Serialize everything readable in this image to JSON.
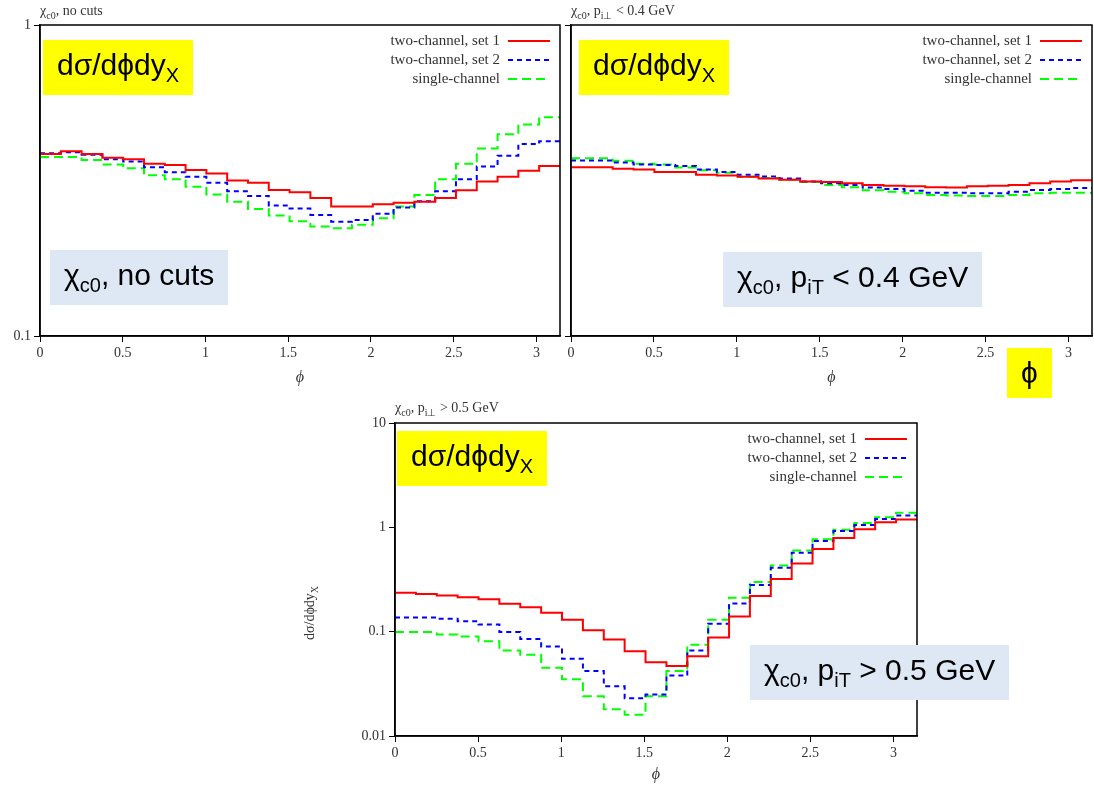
{
  "chart_data": [
    {
      "type": "histogram",
      "title": "χ$_{c0}$, no cuts",
      "xlabel": "ϕ",
      "log": true,
      "grid": false,
      "legend": "top right",
      "bins": [
        0,
        0.126,
        0.251,
        0.377,
        0.503,
        0.628,
        0.754,
        0.88,
        1.005,
        1.131,
        1.257,
        1.382,
        1.508,
        1.634,
        1.759,
        1.885,
        2.011,
        2.136,
        2.262,
        2.388,
        2.513,
        2.639,
        2.765,
        2.89,
        3.016,
        3.142
      ],
      "series": [
        {
          "name": "two-channel, set 1",
          "color": "#ff0000",
          "line_style": "solid",
          "values": [
            0.385,
            0.393,
            0.385,
            0.374,
            0.37,
            0.358,
            0.355,
            0.342,
            0.333,
            0.316,
            0.311,
            0.295,
            0.29,
            0.278,
            0.261,
            0.261,
            0.265,
            0.268,
            0.27,
            0.278,
            0.294,
            0.314,
            0.325,
            0.34,
            0.352
          ]
        },
        {
          "name": "two-channel, set 2",
          "color": "#0000ff",
          "line_style": "dotted",
          "values": [
            0.387,
            0.39,
            0.383,
            0.37,
            0.364,
            0.349,
            0.336,
            0.325,
            0.311,
            0.292,
            0.282,
            0.263,
            0.257,
            0.245,
            0.233,
            0.236,
            0.247,
            0.259,
            0.271,
            0.292,
            0.319,
            0.351,
            0.38,
            0.414,
            0.423
          ]
        },
        {
          "name": "single-channel",
          "color": "#00ff00",
          "line_style": "dashed",
          "values": [
            0.376,
            0.376,
            0.368,
            0.356,
            0.346,
            0.329,
            0.319,
            0.302,
            0.285,
            0.27,
            0.256,
            0.244,
            0.234,
            0.225,
            0.222,
            0.228,
            0.239,
            0.261,
            0.284,
            0.319,
            0.358,
            0.401,
            0.445,
            0.479,
            0.505
          ]
        }
      ],
      "xlim": [
        0,
        3.142
      ],
      "xticks": [
        0,
        0.5,
        1,
        1.5,
        2,
        2.5,
        3
      ],
      "ylim": [
        0.1,
        1
      ],
      "yticks": [
        0.1,
        1
      ],
      "annotations": [
        "dσ/dϕdy$_{X}$",
        "χ$_{c0}$, no cuts"
      ]
    },
    {
      "type": "histogram",
      "title": "χ$_{c0}$, p$_{i⊥}$ < 0.4 GeV",
      "xlabel": "ϕ",
      "log": true,
      "grid": false,
      "legend": "top right",
      "tick_labels": "x",
      "bins": [
        0,
        0.126,
        0.251,
        0.377,
        0.503,
        0.628,
        0.754,
        0.88,
        1.005,
        1.131,
        1.257,
        1.382,
        1.508,
        1.634,
        1.759,
        1.885,
        2.011,
        2.136,
        2.262,
        2.388,
        2.513,
        2.639,
        2.765,
        2.89,
        3.016,
        3.142
      ],
      "series": [
        {
          "name": "two-channel, set 1",
          "color": "#ff0000",
          "line_style": "solid",
          "values": [
            0.349,
            0.349,
            0.345,
            0.343,
            0.337,
            0.337,
            0.33,
            0.328,
            0.325,
            0.321,
            0.318,
            0.314,
            0.313,
            0.31,
            0.306,
            0.304,
            0.303,
            0.301,
            0.3,
            0.303,
            0.304,
            0.306,
            0.31,
            0.314,
            0.317
          ]
        },
        {
          "name": "two-channel, set 2",
          "color": "#0000ff",
          "line_style": "dotted",
          "values": [
            0.367,
            0.367,
            0.361,
            0.356,
            0.355,
            0.352,
            0.343,
            0.337,
            0.33,
            0.326,
            0.321,
            0.314,
            0.31,
            0.306,
            0.3,
            0.297,
            0.293,
            0.289,
            0.289,
            0.288,
            0.288,
            0.291,
            0.295,
            0.297,
            0.299
          ]
        },
        {
          "name": "single-channel",
          "color": "#00ff00",
          "line_style": "dashed",
          "values": [
            0.373,
            0.373,
            0.366,
            0.358,
            0.356,
            0.348,
            0.341,
            0.335,
            0.325,
            0.322,
            0.318,
            0.313,
            0.306,
            0.301,
            0.294,
            0.291,
            0.288,
            0.284,
            0.283,
            0.282,
            0.282,
            0.284,
            0.288,
            0.289,
            0.289
          ]
        }
      ],
      "xlim": [
        0,
        3.142
      ],
      "xticks": [
        0,
        0.5,
        1,
        1.5,
        2,
        2.5,
        3
      ],
      "ylim": [
        0.1,
        1
      ],
      "yticks": [
        0.1,
        1
      ],
      "annotations": [
        "dσ/dϕdy$_{X}$",
        "χ$_{c0}$, p$_{iT}$ < 0.4 GeV",
        "ϕ"
      ]
    },
    {
      "type": "histogram",
      "title": "χ$_{c0}$, p$_{i⊥}$ > 0.5 GeV",
      "xlabel": "ϕ",
      "ylabel": "dσ/dϕdy$_{X}$",
      "log": true,
      "grid": false,
      "legend": "top right",
      "bins": [
        0,
        0.126,
        0.251,
        0.377,
        0.503,
        0.628,
        0.754,
        0.88,
        1.005,
        1.131,
        1.257,
        1.382,
        1.508,
        1.634,
        1.759,
        1.885,
        2.011,
        2.136,
        2.262,
        2.388,
        2.513,
        2.639,
        2.765,
        2.89,
        3.016,
        3.142
      ],
      "series": [
        {
          "name": "two-channel, set 1",
          "color": "#ff0000",
          "line_style": "solid",
          "values": [
            0.236,
            0.23,
            0.222,
            0.214,
            0.205,
            0.185,
            0.171,
            0.152,
            0.13,
            0.103,
            0.084,
            0.065,
            0.051,
            0.047,
            0.058,
            0.088,
            0.14,
            0.22,
            0.32,
            0.45,
            0.62,
            0.79,
            0.96,
            1.12,
            1.19
          ]
        },
        {
          "name": "two-channel, set 2",
          "color": "#0000ff",
          "line_style": "dotted",
          "values": [
            0.137,
            0.137,
            0.133,
            0.126,
            0.117,
            0.099,
            0.085,
            0.072,
            0.055,
            0.042,
            0.03,
            0.023,
            0.025,
            0.038,
            0.066,
            0.119,
            0.186,
            0.28,
            0.41,
            0.57,
            0.74,
            0.92,
            1.05,
            1.2,
            1.3
          ]
        },
        {
          "name": "single-channel",
          "color": "#00ff00",
          "line_style": "dashed",
          "values": [
            0.099,
            0.099,
            0.094,
            0.09,
            0.081,
            0.066,
            0.06,
            0.045,
            0.035,
            0.024,
            0.018,
            0.016,
            0.024,
            0.042,
            0.075,
            0.13,
            0.211,
            0.3,
            0.43,
            0.6,
            0.77,
            0.95,
            1.1,
            1.25,
            1.38
          ]
        }
      ],
      "xlim": [
        0,
        3.142
      ],
      "xticks": [
        0,
        0.5,
        1,
        1.5,
        2,
        2.5,
        3
      ],
      "ylim": [
        0.01,
        10
      ],
      "yticks": [
        0.01,
        0.1,
        1,
        10
      ],
      "annotations": [
        "dσ/dϕdy$_{X}$",
        "χ$_{c0}$, p$_{iT}$ > 0.5 GeV"
      ]
    }
  ]
}
